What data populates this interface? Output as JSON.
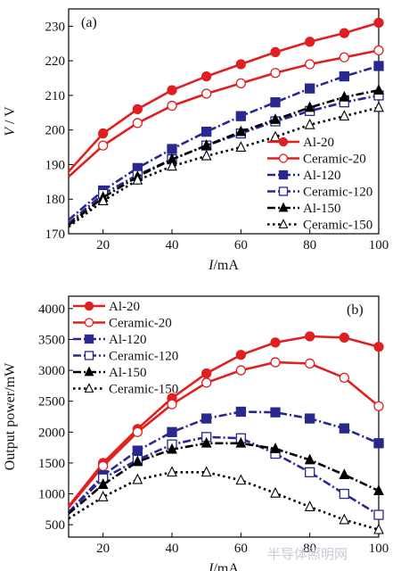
{
  "series_styles": [
    {
      "name": "Al-20",
      "color": "#e02020",
      "dash": "",
      "marker": "circle",
      "filled": true
    },
    {
      "name": "Ceramic-20",
      "color": "#e02020",
      "dash": "",
      "marker": "circle",
      "filled": false
    },
    {
      "name": "Al-120",
      "color": "#28288f",
      "dash": "dashdot",
      "marker": "square",
      "filled": true
    },
    {
      "name": "Ceramic-120",
      "color": "#28288f",
      "dash": "dashdot",
      "marker": "square",
      "filled": false
    },
    {
      "name": "Al-150",
      "color": "#000000",
      "dash": "dashdot",
      "marker": "triangle",
      "filled": true
    },
    {
      "name": "Ceramic-150",
      "color": "#000000",
      "dash": "dotted",
      "marker": "triangle",
      "filled": false
    }
  ],
  "watermark": "半导体照明网",
  "chart_data": [
    {
      "type": "line",
      "panel_label": "(a)",
      "xlabel_italic": "I",
      "xlabel_rest": "/mA",
      "ylabel": "V / V",
      "xlim": [
        10,
        100
      ],
      "ylim": [
        170,
        235
      ],
      "xticks": [
        20,
        40,
        60,
        80,
        100
      ],
      "yticks": [
        170,
        180,
        190,
        200,
        210,
        220,
        230
      ],
      "grid": false,
      "legend_position": "bottom-right",
      "x": [
        10,
        20,
        30,
        40,
        50,
        60,
        70,
        80,
        90,
        100
      ],
      "series": [
        {
          "name": "Al-20",
          "values": [
            188,
            199,
            206,
            211.5,
            215.5,
            219,
            222.5,
            225.5,
            228,
            231
          ]
        },
        {
          "name": "Ceramic-20",
          "values": [
            186.5,
            195.5,
            202,
            207,
            210.5,
            213.5,
            216.5,
            219,
            221,
            223
          ]
        },
        {
          "name": "Al-120",
          "values": [
            174,
            182.5,
            189,
            194.5,
            199.5,
            204,
            208,
            212,
            215.5,
            218.5
          ]
        },
        {
          "name": "Ceramic-120",
          "values": [
            173,
            181.5,
            187,
            191.5,
            195.5,
            199,
            202.5,
            205.5,
            208,
            210
          ]
        },
        {
          "name": "Al-150",
          "values": [
            172.5,
            180.5,
            186.5,
            191.5,
            195.5,
            199.5,
            203,
            206.5,
            209.5,
            211.5
          ]
        },
        {
          "name": "Ceramic-150",
          "values": [
            172,
            179.5,
            185.5,
            189.5,
            192.5,
            195,
            198,
            201.5,
            204,
            206.5
          ]
        }
      ]
    },
    {
      "type": "line",
      "panel_label": "(b)",
      "xlabel_italic": "I",
      "xlabel_rest": "/mA",
      "ylabel": "Output   power/mW",
      "xlim": [
        10,
        100
      ],
      "ylim": [
        300,
        4200
      ],
      "xticks": [
        20,
        40,
        60,
        80,
        100
      ],
      "yticks": [
        500,
        1000,
        1500,
        2000,
        2500,
        3000,
        3500,
        4000
      ],
      "grid": false,
      "legend_position": "top-left",
      "x": [
        10,
        20,
        30,
        40,
        50,
        60,
        70,
        80,
        90,
        100
      ],
      "series": [
        {
          "name": "Al-20",
          "values": [
            800,
            1500,
            2050,
            2550,
            2950,
            3250,
            3450,
            3550,
            3530,
            3380
          ]
        },
        {
          "name": "Ceramic-20",
          "values": [
            780,
            1450,
            2000,
            2450,
            2800,
            3000,
            3130,
            3110,
            2880,
            2420
          ]
        },
        {
          "name": "Al-120",
          "values": [
            700,
            1300,
            1700,
            2000,
            2220,
            2330,
            2320,
            2220,
            2060,
            1820
          ]
        },
        {
          "name": "Ceramic-120",
          "values": [
            700,
            1250,
            1550,
            1800,
            1920,
            1900,
            1650,
            1350,
            1000,
            660
          ]
        },
        {
          "name": "Al-150",
          "values": [
            680,
            1150,
            1520,
            1720,
            1820,
            1820,
            1730,
            1550,
            1310,
            1050
          ]
        },
        {
          "name": "Ceramic-150",
          "values": [
            600,
            950,
            1230,
            1350,
            1350,
            1220,
            1010,
            790,
            580,
            420
          ]
        }
      ]
    }
  ]
}
